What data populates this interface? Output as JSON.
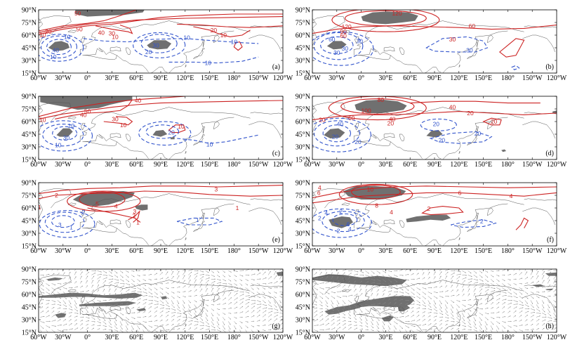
{
  "chart_data": {
    "type": "contour map panels",
    "lon_labels": [
      "60°W",
      "30°W",
      "0°",
      "30°E",
      "60°E",
      "90°E",
      "120°E",
      "150°E",
      "180°",
      "150°W",
      "120°W"
    ],
    "lat_labels": [
      "90°N",
      "75°N",
      "60°N",
      "45°N",
      "30°N",
      "15°N"
    ],
    "colors": {
      "positive": "#cc2222",
      "negative": "#3355cc",
      "shading": "#707070",
      "coast": "#555555",
      "vector": "#888888"
    },
    "panels": [
      {
        "label": "(a)",
        "contour_labels": [
          {
            "text": "50",
            "sign": "pos",
            "lon": -12,
            "lat": 86
          },
          {
            "text": "20",
            "sign": "pos",
            "lon": -48,
            "lat": 64
          },
          {
            "text": "10",
            "sign": "pos",
            "lon": -55,
            "lat": 60
          },
          {
            "text": "50",
            "sign": "pos",
            "lon": -10,
            "lat": 67
          },
          {
            "text": "40",
            "sign": "pos",
            "lon": 17,
            "lat": 63
          },
          {
            "text": "30",
            "sign": "pos",
            "lon": 30,
            "lat": 62
          },
          {
            "text": "10",
            "sign": "pos",
            "lon": 34,
            "lat": 58
          },
          {
            "text": "20",
            "sign": "pos",
            "lon": 155,
            "lat": 66
          },
          {
            "text": "10",
            "sign": "pos",
            "lon": 167,
            "lat": 60
          },
          {
            "text": "10",
            "sign": "pos",
            "lon": -170,
            "lat": 42
          },
          {
            "text": "10",
            "sign": "neg",
            "lon": -25,
            "lat": 58
          },
          {
            "text": "40",
            "sign": "neg",
            "lon": -39,
            "lat": 42
          },
          {
            "text": "10",
            "sign": "neg",
            "lon": -42,
            "lat": 34
          },
          {
            "text": "30",
            "sign": "neg",
            "lon": 84,
            "lat": 48
          },
          {
            "text": "20",
            "sign": "neg",
            "lon": 75,
            "lat": 40
          },
          {
            "text": "10",
            "sign": "neg",
            "lon": 122,
            "lat": 57
          },
          {
            "text": "10",
            "sign": "neg",
            "lon": 180,
            "lat": 52
          },
          {
            "text": "10",
            "sign": "neg",
            "lon": 148,
            "lat": 27
          }
        ]
      },
      {
        "label": "(b)",
        "contour_labels": [
          {
            "text": "120",
            "sign": "pos",
            "lon": 44,
            "lat": 86
          },
          {
            "text": "120",
            "sign": "pos",
            "lon": -18,
            "lat": 70
          },
          {
            "text": "90",
            "sign": "pos",
            "lon": -22,
            "lat": 64
          },
          {
            "text": "60",
            "sign": "pos",
            "lon": -22,
            "lat": 59
          },
          {
            "text": "60",
            "sign": "pos",
            "lon": 136,
            "lat": 71
          },
          {
            "text": "30",
            "sign": "pos",
            "lon": 112,
            "lat": 55
          },
          {
            "text": "30",
            "sign": "pos",
            "lon": -168,
            "lat": 31
          },
          {
            "text": "60",
            "sign": "neg",
            "lon": -36,
            "lat": 55
          },
          {
            "text": "30",
            "sign": "neg",
            "lon": -2,
            "lat": 53
          },
          {
            "text": "30",
            "sign": "neg",
            "lon": -20,
            "lat": 44
          },
          {
            "text": "30",
            "sign": "neg",
            "lon": -30,
            "lat": 39
          },
          {
            "text": "30",
            "sign": "neg",
            "lon": 133,
            "lat": 42
          }
        ]
      },
      {
        "label": "(c)",
        "contour_labels": [
          {
            "text": "40",
            "sign": "pos",
            "lon": 62,
            "lat": 85
          },
          {
            "text": "50",
            "sign": "pos",
            "lon": 0,
            "lat": 72
          },
          {
            "text": "40",
            "sign": "pos",
            "lon": -5,
            "lat": 68
          },
          {
            "text": "30",
            "sign": "pos",
            "lon": 34,
            "lat": 63
          },
          {
            "text": "10",
            "sign": "pos",
            "lon": -55,
            "lat": 62
          },
          {
            "text": "10",
            "sign": "pos",
            "lon": 44,
            "lat": 56
          },
          {
            "text": "10",
            "sign": "pos",
            "lon": 115,
            "lat": 54
          },
          {
            "text": "10",
            "sign": "pos",
            "lon": -162,
            "lat": 53
          },
          {
            "text": "10",
            "sign": "neg",
            "lon": -20,
            "lat": 55
          },
          {
            "text": "30",
            "sign": "neg",
            "lon": -26,
            "lat": 41
          },
          {
            "text": "10",
            "sign": "neg",
            "lon": -36,
            "lat": 32
          },
          {
            "text": "20",
            "sign": "neg",
            "lon": 103,
            "lat": 47
          },
          {
            "text": "10",
            "sign": "neg",
            "lon": 150,
            "lat": 33
          }
        ]
      },
      {
        "label": "(d)",
        "contour_labels": [
          {
            "text": "80",
            "sign": "pos",
            "lon": 24,
            "lat": 86
          },
          {
            "text": "100",
            "sign": "pos",
            "lon": 6,
            "lat": 73
          },
          {
            "text": "60",
            "sign": "pos",
            "lon": -12,
            "lat": 64
          },
          {
            "text": "40",
            "sign": "pos",
            "lon": 38,
            "lat": 63
          },
          {
            "text": "40",
            "sign": "pos",
            "lon": 112,
            "lat": 77
          },
          {
            "text": "20",
            "sign": "pos",
            "lon": 134,
            "lat": 70
          },
          {
            "text": "20",
            "sign": "pos",
            "lon": -48,
            "lat": 62
          },
          {
            "text": "20",
            "sign": "pos",
            "lon": 36,
            "lat": 58
          },
          {
            "text": "20",
            "sign": "pos",
            "lon": 163,
            "lat": 60
          },
          {
            "text": "20",
            "sign": "pos",
            "lon": -167,
            "lat": 52
          },
          {
            "text": "40",
            "sign": "pos",
            "lon": -163,
            "lat": 46
          },
          {
            "text": "20",
            "sign": "neg",
            "lon": 92,
            "lat": 57
          },
          {
            "text": "40",
            "sign": "neg",
            "lon": -26,
            "lat": 57
          },
          {
            "text": "20",
            "sign": "neg",
            "lon": -32,
            "lat": 42
          },
          {
            "text": "20",
            "sign": "neg",
            "lon": -4,
            "lat": 36
          },
          {
            "text": "20",
            "sign": "neg",
            "lon": 99,
            "lat": 38
          },
          {
            "text": "20",
            "sign": "neg",
            "lon": 143,
            "lat": 46
          }
        ]
      },
      {
        "label": "(e)",
        "contour_labels": [
          {
            "text": "3",
            "sign": "pos",
            "lon": 158,
            "lat": 82
          },
          {
            "text": "2",
            "sign": "pos",
            "lon": -38,
            "lat": 75
          },
          {
            "text": "2",
            "sign": "pos",
            "lon": -150,
            "lat": 74
          },
          {
            "text": "5",
            "sign": "pos",
            "lon": 12,
            "lat": 65
          },
          {
            "text": "4",
            "sign": "pos",
            "lon": 35,
            "lat": 62
          },
          {
            "text": "1",
            "sign": "pos",
            "lon": -59,
            "lat": 61
          },
          {
            "text": "1",
            "sign": "pos",
            "lon": 184,
            "lat": 60
          },
          {
            "text": "3",
            "sign": "pos",
            "lon": 58,
            "lat": 56
          },
          {
            "text": "2",
            "sign": "pos",
            "lon": 57,
            "lat": 51
          },
          {
            "text": "1",
            "sign": "pos",
            "lon": 62,
            "lat": 43
          },
          {
            "text": "2",
            "sign": "neg",
            "lon": -5,
            "lat": 55
          },
          {
            "text": "3",
            "sign": "neg",
            "lon": -34,
            "lat": 40
          },
          {
            "text": "1",
            "sign": "neg",
            "lon": -20,
            "lat": 37
          },
          {
            "text": "1",
            "sign": "neg",
            "lon": 135,
            "lat": 46
          }
        ]
      },
      {
        "label": "(f)",
        "contour_labels": [
          {
            "text": "4",
            "sign": "pos",
            "lon": -51,
            "lat": 84
          },
          {
            "text": "10",
            "sign": "pos",
            "lon": 11,
            "lat": 82
          },
          {
            "text": "6",
            "sign": "pos",
            "lon": -52,
            "lat": 78
          },
          {
            "text": "6",
            "sign": "pos",
            "lon": 121,
            "lat": 78
          },
          {
            "text": "4",
            "sign": "pos",
            "lon": 184,
            "lat": 74
          },
          {
            "text": "2",
            "sign": "pos",
            "lon": -145,
            "lat": 72
          },
          {
            "text": "8",
            "sign": "pos",
            "lon": 19,
            "lat": 63
          },
          {
            "text": "2",
            "sign": "pos",
            "lon": 83,
            "lat": 59
          },
          {
            "text": "4",
            "sign": "pos",
            "lon": 37,
            "lat": 55
          },
          {
            "text": "2",
            "sign": "pos",
            "lon": -165,
            "lat": 39
          },
          {
            "text": "2",
            "sign": "pos",
            "lon": -158,
            "lat": 49
          },
          {
            "text": "2",
            "sign": "neg",
            "lon": -25,
            "lat": 56
          },
          {
            "text": "4",
            "sign": "neg",
            "lon": -43,
            "lat": 54
          },
          {
            "text": "2",
            "sign": "neg",
            "lon": -51,
            "lat": 48
          },
          {
            "text": "6",
            "sign": "neg",
            "lon": -16,
            "lat": 41
          },
          {
            "text": "4",
            "sign": "neg",
            "lon": -14,
            "lat": 35
          },
          {
            "text": "2",
            "sign": "neg",
            "lon": -28,
            "lat": 33
          },
          {
            "text": "2",
            "sign": "neg",
            "lon": 148,
            "lat": 44
          }
        ]
      },
      {
        "label": "(g)",
        "contour_labels": []
      },
      {
        "label": "(h)",
        "contour_labels": []
      }
    ]
  }
}
